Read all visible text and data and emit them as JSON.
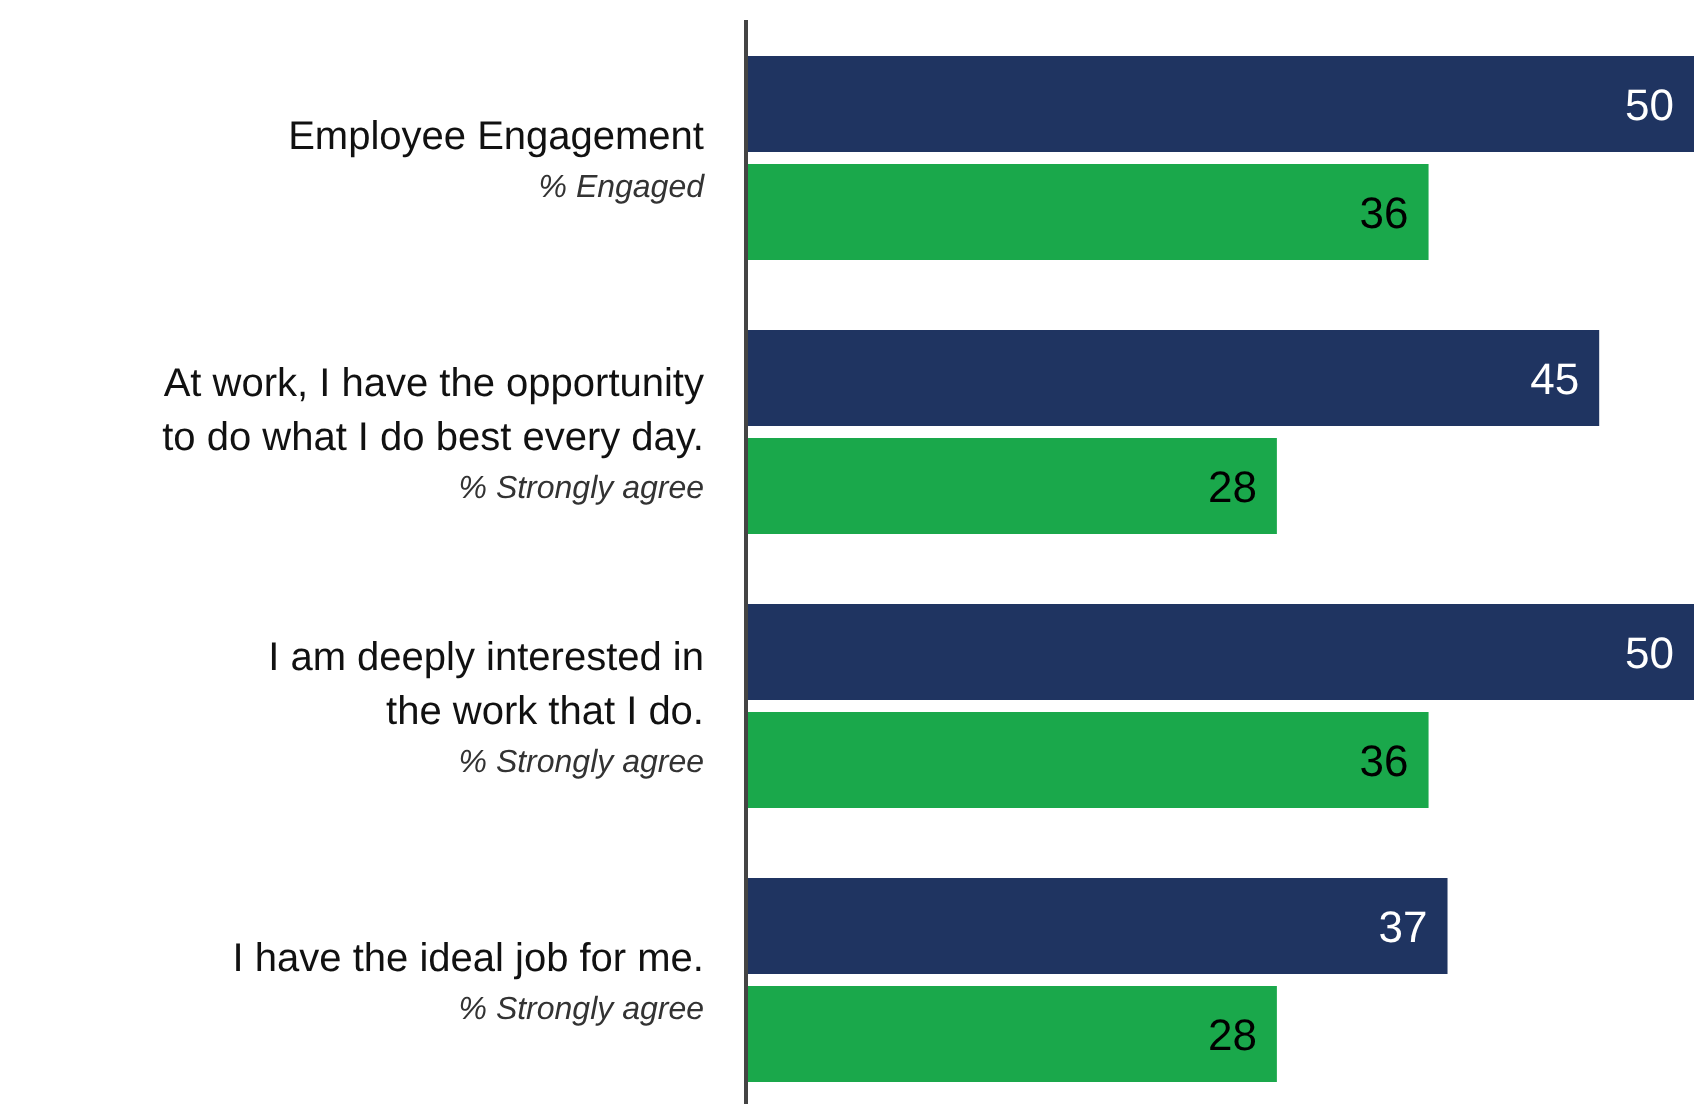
{
  "chart_data": {
    "type": "bar",
    "orientation": "horizontal",
    "categories": [
      "Employee Engagement\n% Engaged",
      "At work, I have the opportunity\nto do what I do best every day.\n% Strongly agree",
      "I am deeply interested in\nthe work that I do.\n% Strongly agree",
      "I have the ideal job for me.\n% Strongly agree"
    ],
    "series": [
      {
        "color": "#1f3461",
        "values": [
          50,
          45,
          50,
          37
        ]
      },
      {
        "color": "#1aa84b",
        "values": [
          36,
          28,
          36,
          28
        ]
      }
    ],
    "xlim": [
      0,
      50
    ],
    "data_labels": true,
    "tick_labels": "y"
  }
}
